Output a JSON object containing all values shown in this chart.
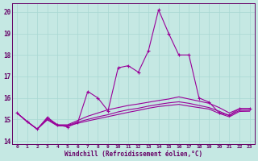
{
  "xlabel": "Windchill (Refroidissement éolien,°C)",
  "background_color": "#c5e8e3",
  "grid_color": "#a8d8d2",
  "line_color": "#990099",
  "xlim_min": -0.5,
  "xlim_max": 23.5,
  "ylim_min": 13.85,
  "ylim_max": 20.4,
  "yticks": [
    14,
    15,
    16,
    17,
    18,
    19,
    20
  ],
  "xticks": [
    0,
    1,
    2,
    3,
    4,
    5,
    6,
    7,
    8,
    9,
    10,
    11,
    12,
    13,
    14,
    15,
    16,
    17,
    18,
    19,
    20,
    21,
    22,
    23
  ],
  "main_series": [
    15.3,
    14.9,
    14.55,
    15.1,
    14.75,
    14.65,
    14.85,
    16.3,
    16.0,
    15.4,
    17.4,
    17.5,
    17.2,
    18.2,
    20.1,
    19.0,
    18.0,
    18.0,
    16.0,
    15.8,
    15.3,
    15.2,
    15.5,
    15.5
  ],
  "smooth1": [
    15.3,
    14.9,
    14.55,
    15.05,
    14.75,
    14.75,
    14.95,
    15.15,
    15.3,
    15.45,
    15.55,
    15.65,
    15.72,
    15.8,
    15.88,
    15.95,
    16.05,
    15.95,
    15.85,
    15.75,
    15.55,
    15.3,
    15.5,
    15.5
  ],
  "smooth2": [
    15.3,
    14.9,
    14.55,
    15.0,
    14.72,
    14.72,
    14.88,
    15.0,
    15.12,
    15.22,
    15.35,
    15.45,
    15.52,
    15.62,
    15.7,
    15.77,
    15.82,
    15.75,
    15.65,
    15.55,
    15.38,
    15.18,
    15.42,
    15.42
  ],
  "smooth3": [
    15.3,
    14.9,
    14.55,
    14.98,
    14.7,
    14.7,
    14.82,
    14.93,
    15.03,
    15.13,
    15.23,
    15.33,
    15.42,
    15.52,
    15.6,
    15.65,
    15.7,
    15.62,
    15.55,
    15.48,
    15.28,
    15.12,
    15.37,
    15.38
  ]
}
